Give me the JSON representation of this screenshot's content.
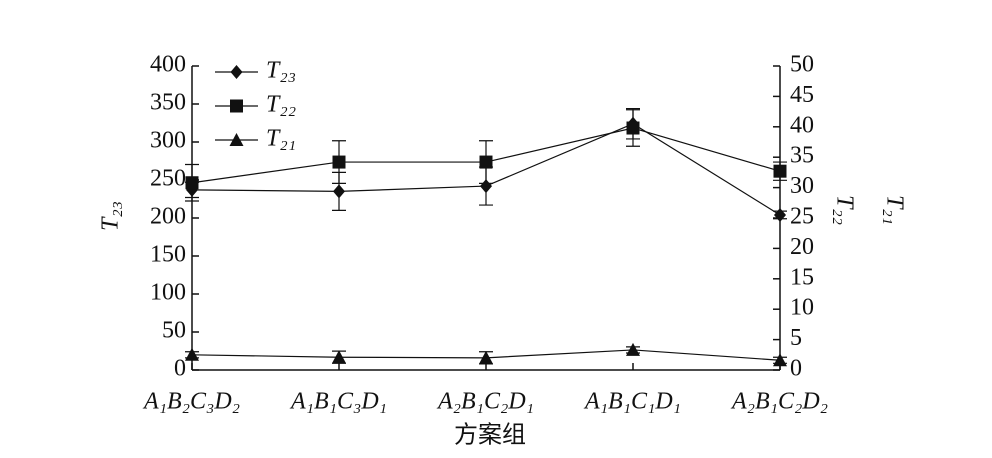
{
  "chart_data": {
    "type": "line",
    "x_label": "方案组",
    "y_label": "T₂₃",
    "y2_labels": [
      "T₂₂",
      "T₂₁"
    ],
    "categories": [
      "A₁B₂C₃D₂",
      "A₁B₁C₃D₁",
      "A₂B₁C₂D₁",
      "A₁B₁C₁D₁",
      "A₂B₁C₂D₂"
    ],
    "ylim": [
      0,
      400
    ],
    "yticks": [
      0,
      50,
      100,
      150,
      200,
      250,
      300,
      350,
      400
    ],
    "y2lim": [
      0,
      50
    ],
    "y2ticks": [
      0,
      5,
      10,
      15,
      20,
      25,
      30,
      35,
      40,
      45,
      50
    ],
    "legend": "upper left",
    "series": [
      {
        "name": "T₂₃",
        "color": "#111111",
        "marker": "diamond",
        "values": [
          237,
          235,
          242,
          324,
          204
        ],
        "errors": [
          10,
          25,
          25,
          20,
          5
        ]
      },
      {
        "name": "T₂₂",
        "color": "#111111",
        "marker": "square",
        "axis": "y2",
        "values": [
          30.8,
          34.2,
          34.2,
          39.8,
          32.7
        ],
        "errors": [
          3,
          3.5,
          3.5,
          3,
          1.5
        ]
      },
      {
        "name": "T₂₁",
        "color": "#111111",
        "marker": "triangle",
        "axis": "y2",
        "values": [
          2.5,
          2.1,
          2.0,
          3.3,
          1.6
        ],
        "errors": [
          0.5,
          1,
          1,
          0.5,
          0.5
        ]
      }
    ]
  }
}
